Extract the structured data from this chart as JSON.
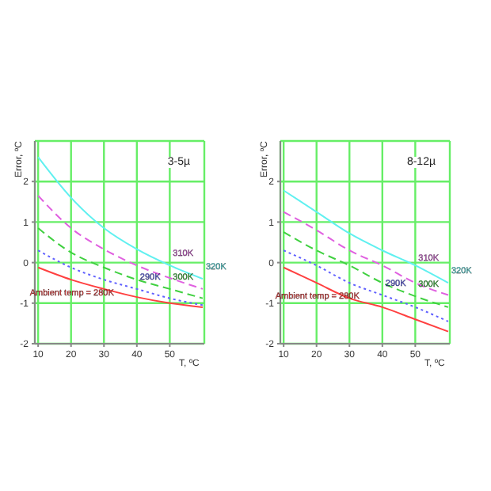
{
  "chart_data": [
    {
      "type": "line",
      "annotations": [
        "3-5µ"
      ],
      "ylabel": "Error, ºC",
      "xlabel": "T, ºC",
      "x": [
        10,
        20,
        30,
        40,
        50,
        60
      ],
      "xlim": [
        9,
        60.5
      ],
      "xticks": [
        10,
        20,
        30,
        40,
        50
      ],
      "ylim": [
        -2,
        3
      ],
      "yticks": [
        -2,
        -1,
        0,
        1,
        2
      ],
      "grid": true,
      "legend": false,
      "marker": "none",
      "series": [
        {
          "name": "Ambient temp = 280K",
          "color": "#ff4040",
          "line_style": "solid",
          "values": [
            -0.12,
            -0.42,
            -0.65,
            -0.85,
            -1.0,
            -1.1
          ]
        },
        {
          "name": "290K",
          "color": "#6060ff",
          "line_style": "dotted",
          "values": [
            0.3,
            -0.12,
            -0.42,
            -0.65,
            -0.88,
            -1.05
          ]
        },
        {
          "name": "300K",
          "color": "#40d040",
          "line_style": "dashed",
          "values": [
            0.85,
            0.25,
            -0.12,
            -0.42,
            -0.65,
            -0.88
          ]
        },
        {
          "name": "310K",
          "color": "#e060e0",
          "line_style": "dashed",
          "values": [
            1.65,
            0.85,
            0.33,
            -0.07,
            -0.38,
            -0.65
          ]
        },
        {
          "name": "320K",
          "color": "#60f0f0",
          "line_style": "solid",
          "values": [
            2.6,
            1.6,
            0.85,
            0.33,
            -0.07,
            -0.4
          ]
        }
      ]
    },
    {
      "type": "line",
      "annotations": [
        "8-12µ"
      ],
      "ylabel": "Error, ºC",
      "xlabel": "T, ºC",
      "x": [
        10,
        20,
        30,
        40,
        50,
        60
      ],
      "xlim": [
        9,
        60.5
      ],
      "xticks": [
        10,
        20,
        30,
        40,
        50
      ],
      "ylim": [
        -2,
        3
      ],
      "yticks": [
        -2,
        -1,
        0,
        1,
        2
      ],
      "grid": true,
      "legend": false,
      "marker": "none",
      "series": [
        {
          "name": "Ambient temp = 280K",
          "color": "#ff4040",
          "line_style": "solid",
          "values": [
            -0.12,
            -0.5,
            -0.88,
            -1.1,
            -1.4,
            -1.7
          ]
        },
        {
          "name": "290K",
          "color": "#6060ff",
          "line_style": "dotted",
          "values": [
            0.3,
            -0.07,
            -0.5,
            -0.8,
            -1.1,
            -1.45
          ]
        },
        {
          "name": "300K",
          "color": "#40d040",
          "line_style": "dashed",
          "values": [
            0.75,
            0.3,
            -0.07,
            -0.5,
            -0.83,
            -1.1
          ]
        },
        {
          "name": "310K",
          "color": "#e060e0",
          "line_style": "dashed",
          "values": [
            1.25,
            0.8,
            0.3,
            -0.07,
            -0.5,
            -0.8
          ]
        },
        {
          "name": "320K",
          "color": "#60f0f0",
          "line_style": "solid",
          "values": [
            1.78,
            1.25,
            0.72,
            0.3,
            -0.07,
            -0.5
          ]
        }
      ]
    }
  ]
}
